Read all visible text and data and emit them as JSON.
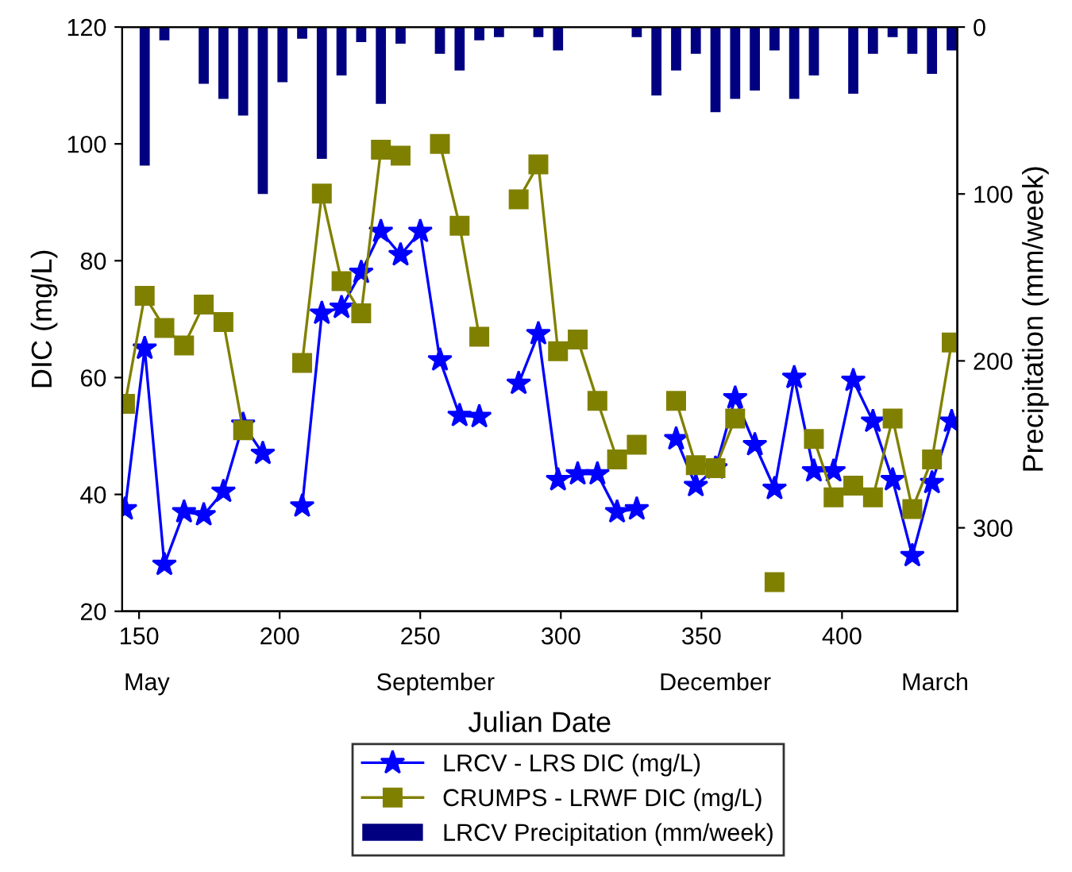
{
  "chart_data": {
    "type": "line",
    "xlabel": "Julian Date",
    "ylabel": "DIC (mg/L)",
    "y2label": "Precipitation (mm/week)",
    "xlim": [
      144,
      441
    ],
    "xticks": [
      150,
      200,
      250,
      300,
      350,
      400
    ],
    "ylim": [
      20,
      120
    ],
    "yticks": [
      20,
      40,
      60,
      80,
      100,
      120
    ],
    "y2lim": [
      350,
      0
    ],
    "y2ticks": [
      0,
      100,
      200,
      300
    ],
    "grid": false,
    "legend": "bottom",
    "annotations": [
      "May",
      "September",
      "December",
      "March"
    ],
    "series": [
      {
        "name": "LRCV - LRS DIC (mg/L)",
        "color": "#0000ff",
        "marker": "star",
        "line_style": "solid",
        "x": [
          145,
          152,
          159,
          166,
          173,
          180,
          187,
          194,
          201,
          208,
          215,
          222,
          229,
          236,
          243,
          250,
          257,
          264,
          271,
          278,
          285,
          292,
          299,
          306,
          313,
          320,
          327,
          334,
          341,
          348,
          355,
          362,
          369,
          376,
          383,
          390,
          397,
          404,
          411,
          418,
          425,
          432,
          439
        ],
        "values": [
          37.5,
          65,
          28,
          37,
          36.5,
          40.5,
          52,
          47,
          null,
          38,
          71,
          72,
          78,
          85,
          81,
          85,
          63,
          53.5,
          53.3,
          null,
          59,
          67.5,
          42.5,
          43.5,
          43.5,
          37,
          37.5,
          null,
          49.5,
          41.5,
          44.5,
          56.5,
          48.5,
          41,
          60,
          44,
          44,
          59.5,
          52.5,
          42.5,
          29.5,
          42,
          52.5
        ]
      },
      {
        "name": "CRUMPS - LRWF DIC (mg/L)",
        "color": "#808000",
        "marker": "square",
        "line_style": "solid",
        "x": [
          145,
          152,
          159,
          166,
          173,
          180,
          187,
          194,
          201,
          208,
          215,
          222,
          229,
          236,
          243,
          250,
          257,
          264,
          271,
          278,
          285,
          292,
          299,
          306,
          313,
          320,
          327,
          334,
          341,
          348,
          355,
          362,
          369,
          376,
          383,
          390,
          397,
          404,
          411,
          418,
          425,
          432,
          439
        ],
        "values": [
          55.5,
          74,
          68.5,
          65.5,
          72.5,
          69.5,
          51,
          null,
          null,
          62.5,
          91.5,
          76.5,
          71,
          99,
          98,
          null,
          100,
          86,
          67,
          null,
          90.5,
          96.5,
          64.5,
          66.5,
          56,
          46,
          48.5,
          null,
          56,
          45,
          44.5,
          53,
          null,
          25,
          null,
          49.5,
          39.5,
          41.5,
          39.5,
          53,
          37.5,
          46,
          66
        ]
      },
      {
        "name": "LRCV Precipitation (mm/week)",
        "type": "bar",
        "axis": "y2",
        "color": "#000080",
        "x": [
          152,
          159,
          173,
          180,
          187,
          194,
          201,
          208,
          215,
          222,
          229,
          236,
          243,
          257,
          264,
          271,
          278,
          292,
          299,
          327,
          334,
          341,
          348,
          355,
          362,
          369,
          376,
          383,
          390,
          404,
          411,
          418,
          425,
          432,
          439
        ],
        "values": [
          83,
          8,
          34,
          43,
          53,
          100,
          33,
          7,
          79,
          29,
          9,
          46,
          10,
          16,
          26,
          8,
          6,
          6,
          14,
          6,
          41,
          26,
          16,
          51,
          43,
          38,
          14,
          43,
          29,
          40,
          16,
          6,
          16,
          28,
          14
        ]
      }
    ]
  }
}
